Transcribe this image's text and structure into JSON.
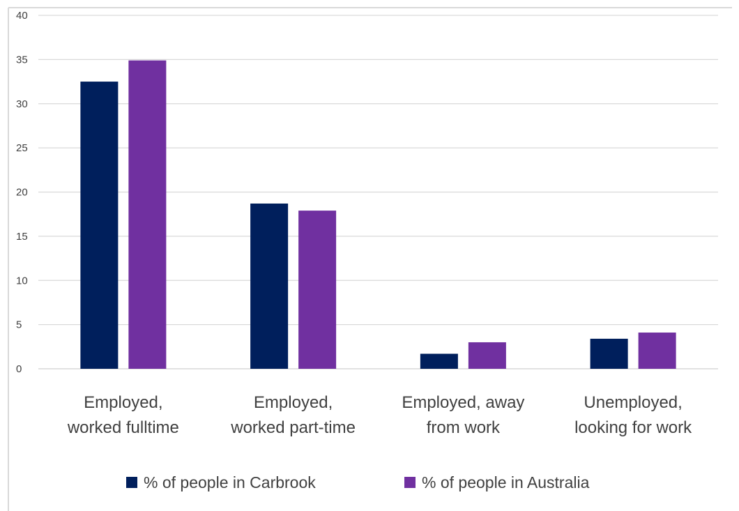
{
  "chart_data": {
    "type": "bar",
    "categories": [
      [
        "Employed,",
        "worked fulltime"
      ],
      [
        "Employed,",
        "worked part-time"
      ],
      [
        "Employed, away",
        "from work"
      ],
      [
        "Unemployed,",
        "looking for work"
      ]
    ],
    "series": [
      {
        "name": "% of people in Carbrook",
        "color": "#001f5c",
        "values": [
          32.5,
          18.7,
          1.7,
          3.4
        ]
      },
      {
        "name": "% of people in Australia",
        "color": "#7030a0",
        "values": [
          34.9,
          17.9,
          3.0,
          4.1
        ]
      }
    ],
    "yticks": [
      "0",
      "5",
      "10",
      "15",
      "20",
      "25",
      "30",
      "35",
      "40"
    ],
    "ylim": [
      0,
      40
    ],
    "grid": true,
    "legend_position": "bottom"
  }
}
